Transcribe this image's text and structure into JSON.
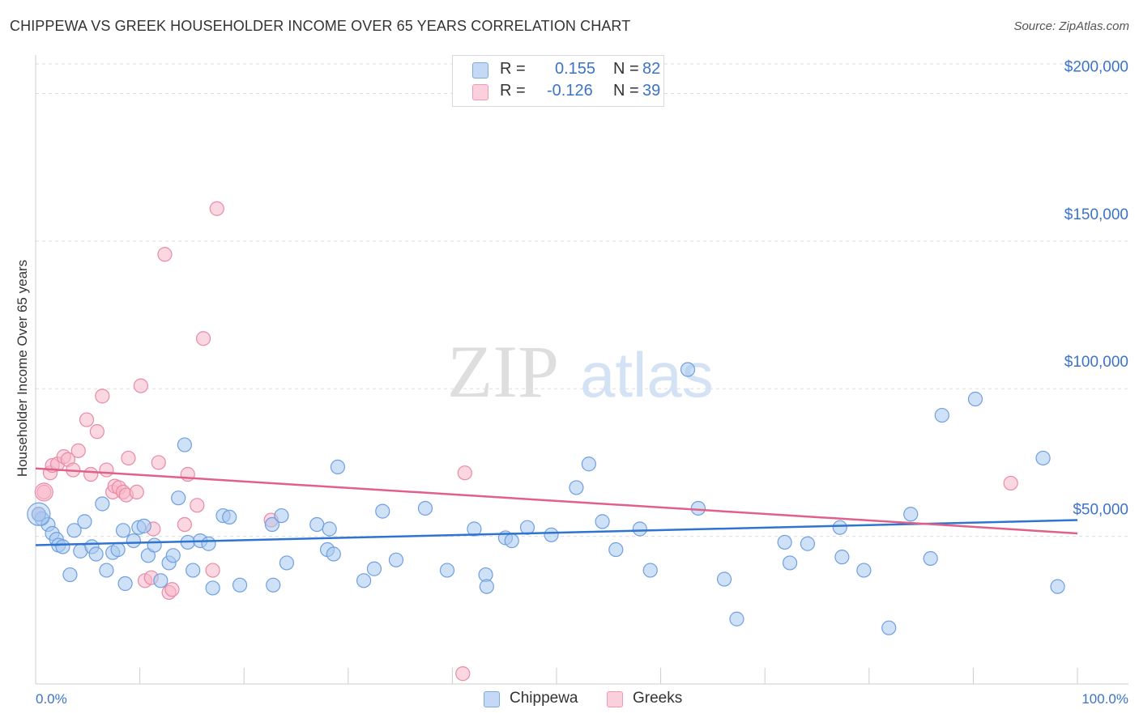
{
  "title": "CHIPPEWA VS GREEK HOUSEHOLDER INCOME OVER 65 YEARS CORRELATION CHART",
  "source": "Source: ZipAtlas.com",
  "watermark": {
    "zip": "ZIP",
    "atlas": "atlas"
  },
  "legend": {
    "r_label": "R =",
    "n_label": "N =",
    "rows": [
      {
        "series": "Chippewa",
        "r": "0.155",
        "n": "82",
        "color": "#a8c8f0"
      },
      {
        "series": "Greeks",
        "r": "-0.126",
        "n": "39",
        "color": "#f7b6c8"
      }
    ]
  },
  "colors": {
    "chippewa_fill": "#a8c8f0",
    "chippewa_stroke": "#6f9fe0",
    "chippewa_line": "#2f74d0",
    "greeks_fill": "#f7b6c8",
    "greeks_stroke": "#e98aa6",
    "greeks_line": "#e0608a",
    "axis_label": "#3b73c8",
    "grid": "#dddddd"
  },
  "chart_data": {
    "type": "scatter",
    "title": "CHIPPEWA VS GREEK HOUSEHOLDER INCOME OVER 65 YEARS CORRELATION CHART",
    "xlabel": "",
    "ylabel": "Householder Income Over 65 years",
    "xlim": [
      0,
      100
    ],
    "ylim": [
      0,
      210000
    ],
    "x_tick_labels": [
      "0.0%",
      "100.0%"
    ],
    "y_ticks": [
      50000,
      100000,
      150000,
      200000
    ],
    "y_tick_labels": [
      "$50,000",
      "$100,000",
      "$150,000",
      "$200,000"
    ],
    "grid": true,
    "series": [
      {
        "name": "Chippewa",
        "trend": {
          "x": [
            0,
            100
          ],
          "y": [
            47000,
            55500
          ]
        },
        "points": [
          [
            0.6,
            56000
          ],
          [
            1.2,
            54000
          ],
          [
            1.6,
            51000
          ],
          [
            2.0,
            49000
          ],
          [
            2.2,
            47000
          ],
          [
            2.6,
            46500
          ],
          [
            3.3,
            37000
          ],
          [
            3.7,
            52000
          ],
          [
            4.3,
            45000
          ],
          [
            4.7,
            55000
          ],
          [
            5.4,
            46500
          ],
          [
            5.8,
            44000
          ],
          [
            6.4,
            61000
          ],
          [
            6.8,
            38500
          ],
          [
            7.4,
            44500
          ],
          [
            7.9,
            45500
          ],
          [
            8.4,
            52000
          ],
          [
            8.6,
            34000
          ],
          [
            9.4,
            48500
          ],
          [
            9.9,
            53000
          ],
          [
            10.4,
            53500
          ],
          [
            10.8,
            43500
          ],
          [
            11.4,
            47000
          ],
          [
            12.0,
            35000
          ],
          [
            12.8,
            41000
          ],
          [
            13.2,
            43500
          ],
          [
            13.7,
            63000
          ],
          [
            14.3,
            81000
          ],
          [
            14.6,
            48000
          ],
          [
            15.1,
            38500
          ],
          [
            15.8,
            48500
          ],
          [
            16.6,
            47500
          ],
          [
            17.0,
            32500
          ],
          [
            18.0,
            57000
          ],
          [
            18.6,
            56500
          ],
          [
            19.6,
            33500
          ],
          [
            22.7,
            54000
          ],
          [
            22.8,
            33500
          ],
          [
            23.6,
            57000
          ],
          [
            24.1,
            41000
          ],
          [
            27.0,
            54000
          ],
          [
            28.0,
            45500
          ],
          [
            28.2,
            52500
          ],
          [
            28.6,
            44000
          ],
          [
            29.0,
            73500
          ],
          [
            31.5,
            35000
          ],
          [
            32.5,
            39000
          ],
          [
            33.3,
            58500
          ],
          [
            34.6,
            42000
          ],
          [
            37.4,
            59500
          ],
          [
            39.5,
            38500
          ],
          [
            42.1,
            52500
          ],
          [
            43.2,
            37000
          ],
          [
            43.3,
            33000
          ],
          [
            45.1,
            49500
          ],
          [
            45.7,
            48500
          ],
          [
            47.2,
            53000
          ],
          [
            49.5,
            50500
          ],
          [
            51.9,
            66500
          ],
          [
            53.1,
            74500
          ],
          [
            54.4,
            55000
          ],
          [
            55.7,
            45500
          ],
          [
            58.0,
            52500
          ],
          [
            59.0,
            38500
          ],
          [
            62.6,
            106500
          ],
          [
            63.6,
            59500
          ],
          [
            66.1,
            35500
          ],
          [
            67.3,
            22000
          ],
          [
            71.9,
            48000
          ],
          [
            72.4,
            41000
          ],
          [
            74.1,
            47500
          ],
          [
            77.2,
            53000
          ],
          [
            77.4,
            43000
          ],
          [
            79.5,
            38500
          ],
          [
            81.9,
            19000
          ],
          [
            84.0,
            57500
          ],
          [
            85.9,
            42500
          ],
          [
            87.0,
            91000
          ],
          [
            90.2,
            96500
          ],
          [
            96.7,
            76500
          ],
          [
            98.1,
            33000
          ],
          [
            0.3,
            57500
          ]
        ]
      },
      {
        "name": "Greeks",
        "trend": {
          "x": [
            0,
            100
          ],
          "y": [
            73000,
            51000
          ]
        },
        "points": [
          [
            0.3,
            57500
          ],
          [
            0.8,
            65000
          ],
          [
            1.4,
            71500
          ],
          [
            1.6,
            74000
          ],
          [
            2.1,
            74500
          ],
          [
            2.7,
            77000
          ],
          [
            3.1,
            76000
          ],
          [
            3.6,
            72500
          ],
          [
            4.1,
            79000
          ],
          [
            4.9,
            89500
          ],
          [
            5.3,
            71000
          ],
          [
            5.9,
            85500
          ],
          [
            6.4,
            97500
          ],
          [
            6.8,
            72500
          ],
          [
            7.4,
            65000
          ],
          [
            7.6,
            67000
          ],
          [
            8.0,
            66500
          ],
          [
            8.4,
            65000
          ],
          [
            8.7,
            64000
          ],
          [
            8.9,
            76500
          ],
          [
            9.7,
            65000
          ],
          [
            10.1,
            101000
          ],
          [
            10.5,
            35000
          ],
          [
            11.1,
            36000
          ],
          [
            11.3,
            52500
          ],
          [
            11.8,
            75000
          ],
          [
            12.4,
            145500
          ],
          [
            12.8,
            31000
          ],
          [
            13.1,
            32000
          ],
          [
            14.3,
            54000
          ],
          [
            14.6,
            71000
          ],
          [
            15.5,
            60500
          ],
          [
            16.1,
            117000
          ],
          [
            17.0,
            38500
          ],
          [
            17.4,
            161000
          ],
          [
            22.6,
            55500
          ],
          [
            41.2,
            71500
          ],
          [
            41.0,
            3500
          ],
          [
            93.6,
            68000
          ]
        ]
      }
    ]
  }
}
